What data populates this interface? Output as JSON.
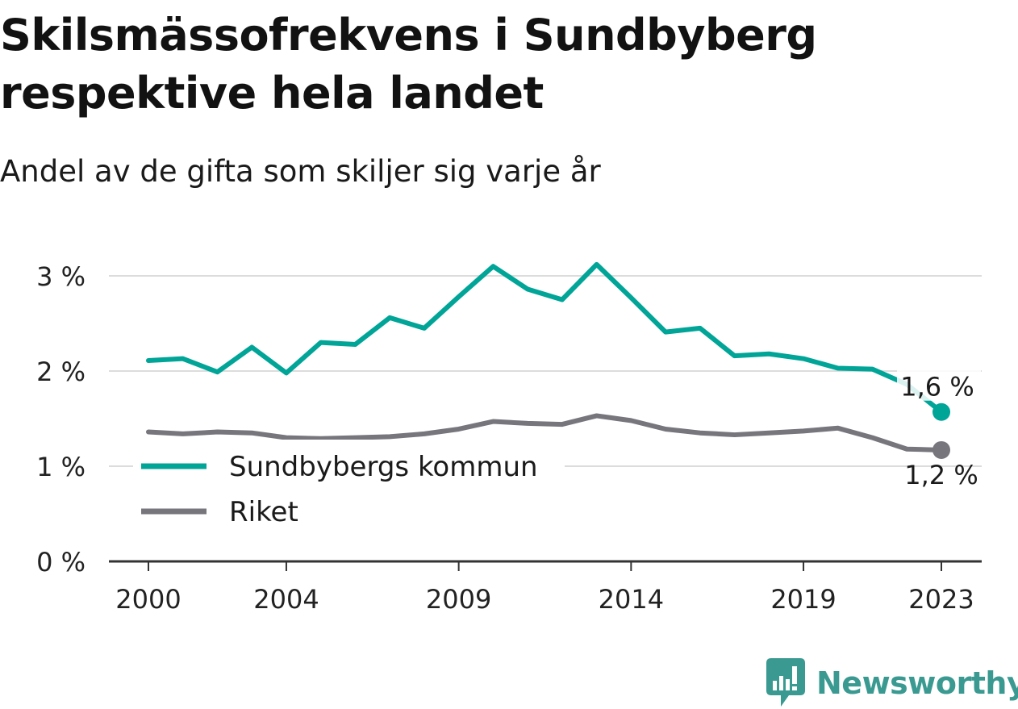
{
  "title": "Skilsmässofrekvens i Sundbyberg respektive hela landet",
  "subtitle": "Andel av de gifta som skiljer sig varje år",
  "brand": "Newsworthy",
  "chart_data": {
    "type": "line",
    "title": "Skilsmässofrekvens i Sundbyberg respektive hela landet",
    "subtitle": "Andel av de gifta som skiljer sig varje år",
    "x": [
      2000,
      2001,
      2002,
      2003,
      2004,
      2005,
      2006,
      2007,
      2008,
      2009,
      2010,
      2011,
      2012,
      2013,
      2014,
      2015,
      2016,
      2017,
      2018,
      2019,
      2020,
      2021,
      2022,
      2023
    ],
    "x_ticks": [
      "2000",
      "2004",
      "2009",
      "2014",
      "2019",
      "2023"
    ],
    "y_ticks": [
      "0 %",
      "1 %",
      "2 %",
      "3 %"
    ],
    "ylim": [
      0,
      3.2
    ],
    "grid": true,
    "legend_position": "bottom-left",
    "series": [
      {
        "name": "Sundbybergs kommun",
        "color": "#00a598",
        "values": [
          2.11,
          2.13,
          1.99,
          2.25,
          1.98,
          2.3,
          2.28,
          2.56,
          2.45,
          2.78,
          3.1,
          2.86,
          2.75,
          3.12,
          2.77,
          2.41,
          2.45,
          2.16,
          2.18,
          2.13,
          2.03,
          2.02,
          1.86,
          1.57
        ],
        "end_label": "1,6 %"
      },
      {
        "name": "Riket",
        "color": "#76767c",
        "values": [
          1.36,
          1.34,
          1.36,
          1.35,
          1.3,
          1.29,
          1.3,
          1.31,
          1.34,
          1.39,
          1.47,
          1.45,
          1.44,
          1.53,
          1.48,
          1.39,
          1.35,
          1.33,
          1.35,
          1.37,
          1.4,
          1.3,
          1.18,
          1.17
        ],
        "end_label": "1,2 %"
      }
    ]
  }
}
